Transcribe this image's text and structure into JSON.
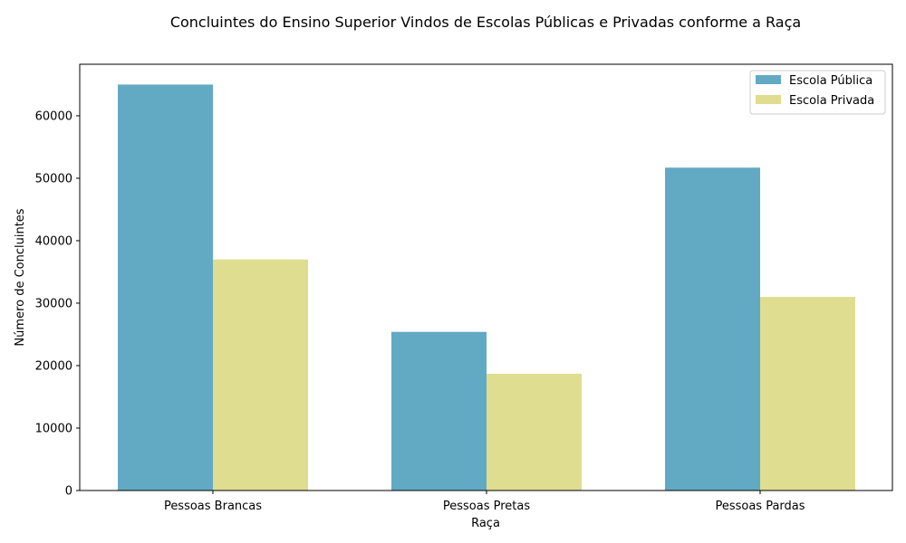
{
  "chart_data": {
    "type": "bar",
    "title": "Concluintes do Ensino Superior Vindos de Escolas Públicas e Privadas conforme a Raça",
    "xlabel": "Raça",
    "ylabel": "Número de Concluintes",
    "categories": [
      "Pessoas Brancas",
      "Pessoas Pretas",
      "Pessoas Pardas"
    ],
    "series": [
      {
        "name": "Escola Pública",
        "color": "#62aac3",
        "values": [
          65000,
          25400,
          51700
        ]
      },
      {
        "name": "Escola Privada",
        "color": "#dfdd8f",
        "values": [
          37000,
          18700,
          31000
        ]
      }
    ],
    "ylim": [
      0,
      68250
    ],
    "yticks": [
      0,
      10000,
      20000,
      30000,
      40000,
      50000,
      60000
    ],
    "legend": "top-right",
    "grid": false
  }
}
